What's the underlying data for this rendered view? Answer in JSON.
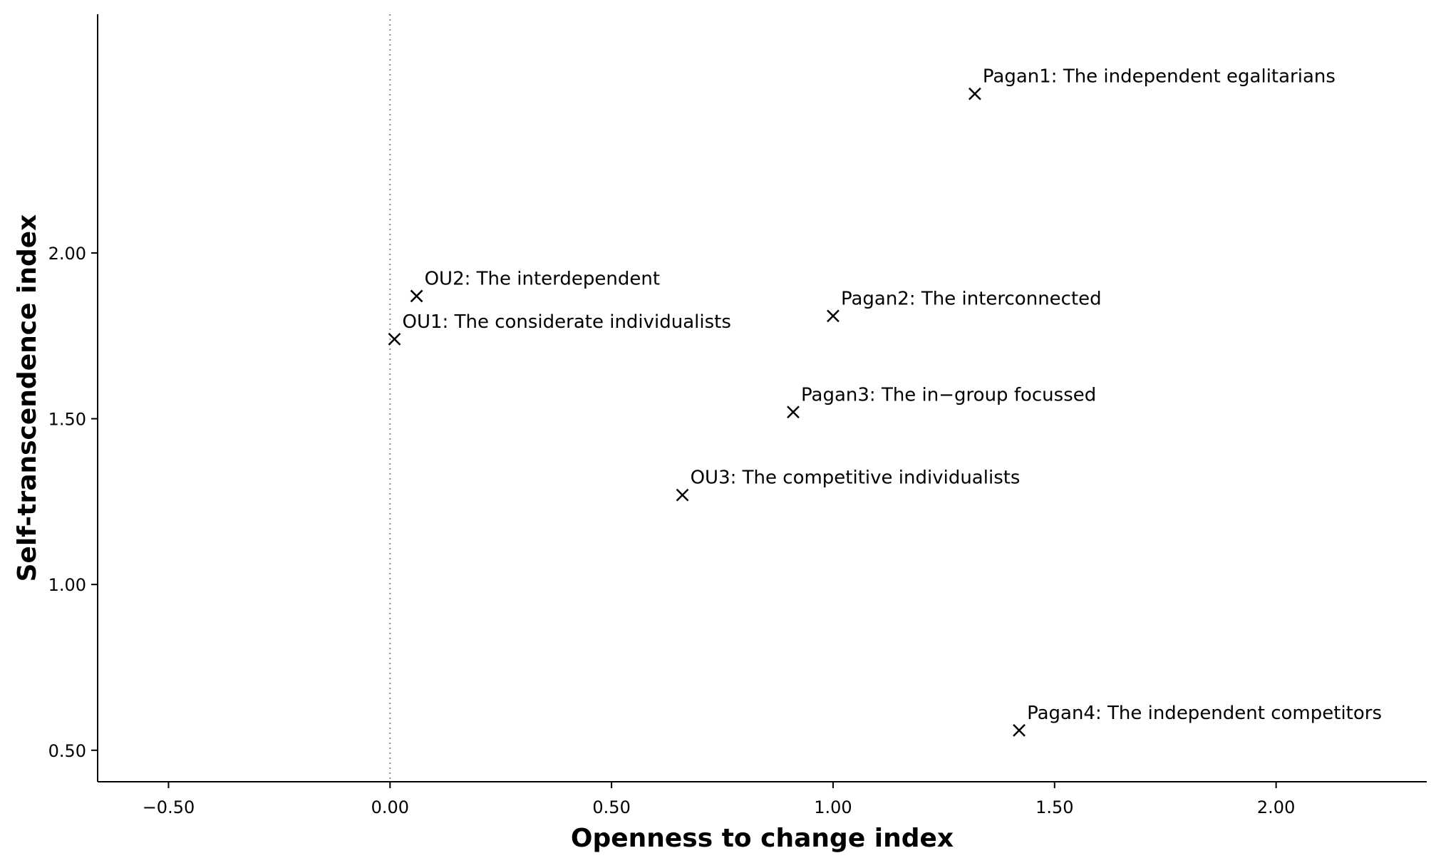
{
  "chart_data": {
    "type": "scatter",
    "title": "",
    "xlabel": "Openness to change index",
    "ylabel": "Self-transcendence index",
    "xlim": [
      -0.66,
      2.34
    ],
    "ylim": [
      0.405,
      2.72
    ],
    "x_ticks": [
      -0.5,
      0.0,
      0.5,
      1.0,
      1.5,
      2.0
    ],
    "x_tick_labels": [
      "-0.50",
      "0.00",
      "0.50",
      "1.00",
      "1.50",
      "2.00"
    ],
    "y_ticks": [
      0.5,
      1.0,
      1.5,
      2.0
    ],
    "y_tick_labels": [
      "0.50",
      "1.00",
      "1.50",
      "2.00"
    ],
    "reference_line_x": 0.0,
    "grid": false,
    "marker": "x",
    "points": [
      {
        "label": "Pagan1: The independent egalitarians",
        "x": 1.32,
        "y": 2.48
      },
      {
        "label": "OU2: The interdependent",
        "x": 0.06,
        "y": 1.87
      },
      {
        "label": "Pagan2: The interconnected",
        "x": 1.0,
        "y": 1.81
      },
      {
        "label": "OU1: The considerate individualists",
        "x": 0.01,
        "y": 1.74
      },
      {
        "label": "Pagan3: The in-group focussed",
        "x": 0.91,
        "y": 1.52
      },
      {
        "label": "OU3: The competitive individualists",
        "x": 0.66,
        "y": 1.27
      },
      {
        "label": "Pagan4: The independent competitors",
        "x": 1.42,
        "y": 0.56
      }
    ]
  }
}
